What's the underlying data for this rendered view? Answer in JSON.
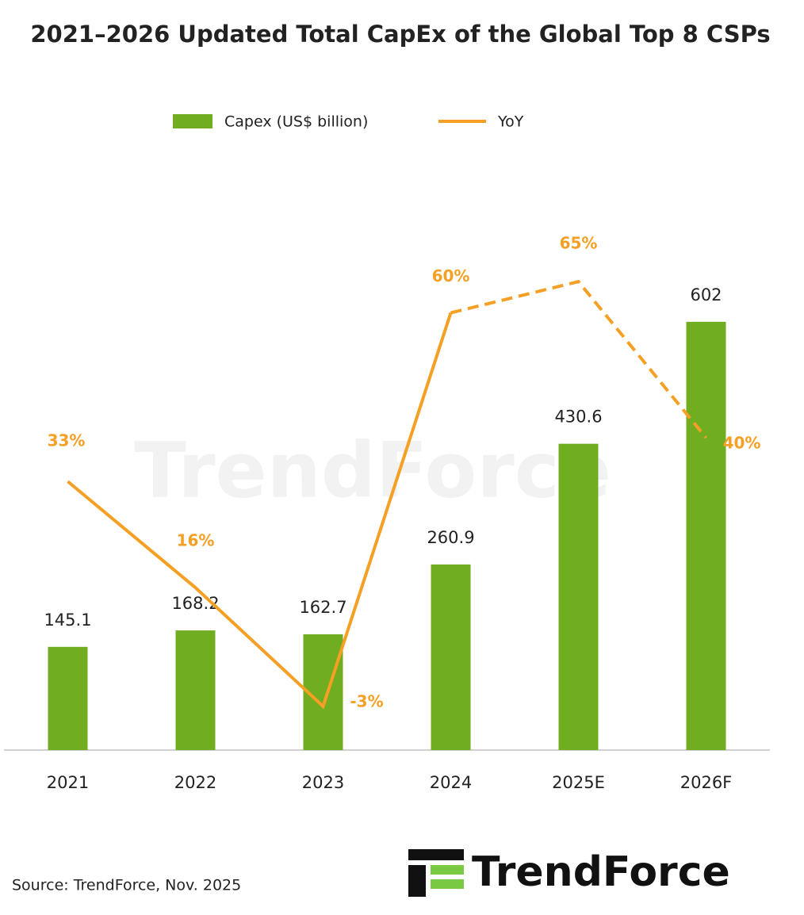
{
  "chart_data": {
    "type": "bar-line",
    "title": "2021–2026 Updated Total CapEx of the Global Top 8 CSPs",
    "categories": [
      "2021",
      "2022",
      "2023",
      "2024",
      "2025E",
      "2026F"
    ],
    "series": [
      {
        "name": "Capex (US$ billion)",
        "type": "bar",
        "color": "#70ad21",
        "values": [
          145.1,
          168.2,
          162.7,
          260.9,
          430.6,
          602
        ]
      },
      {
        "name": "YoY",
        "type": "line",
        "axis": "y2",
        "color": "#f5a025",
        "dash_from_index": 3,
        "values": [
          33,
          16,
          -3,
          60,
          65,
          40
        ],
        "value_labels": [
          "33%",
          "16%",
          "-3%",
          "60%",
          "65%",
          "40%"
        ]
      }
    ],
    "ylim": [
      0,
      720
    ],
    "y2lim": [
      -10,
      72
    ],
    "legend": "top",
    "watermark": "TrendForce",
    "source": "Source: TrendForce, Nov. 2025",
    "logo": "TrendForce"
  }
}
